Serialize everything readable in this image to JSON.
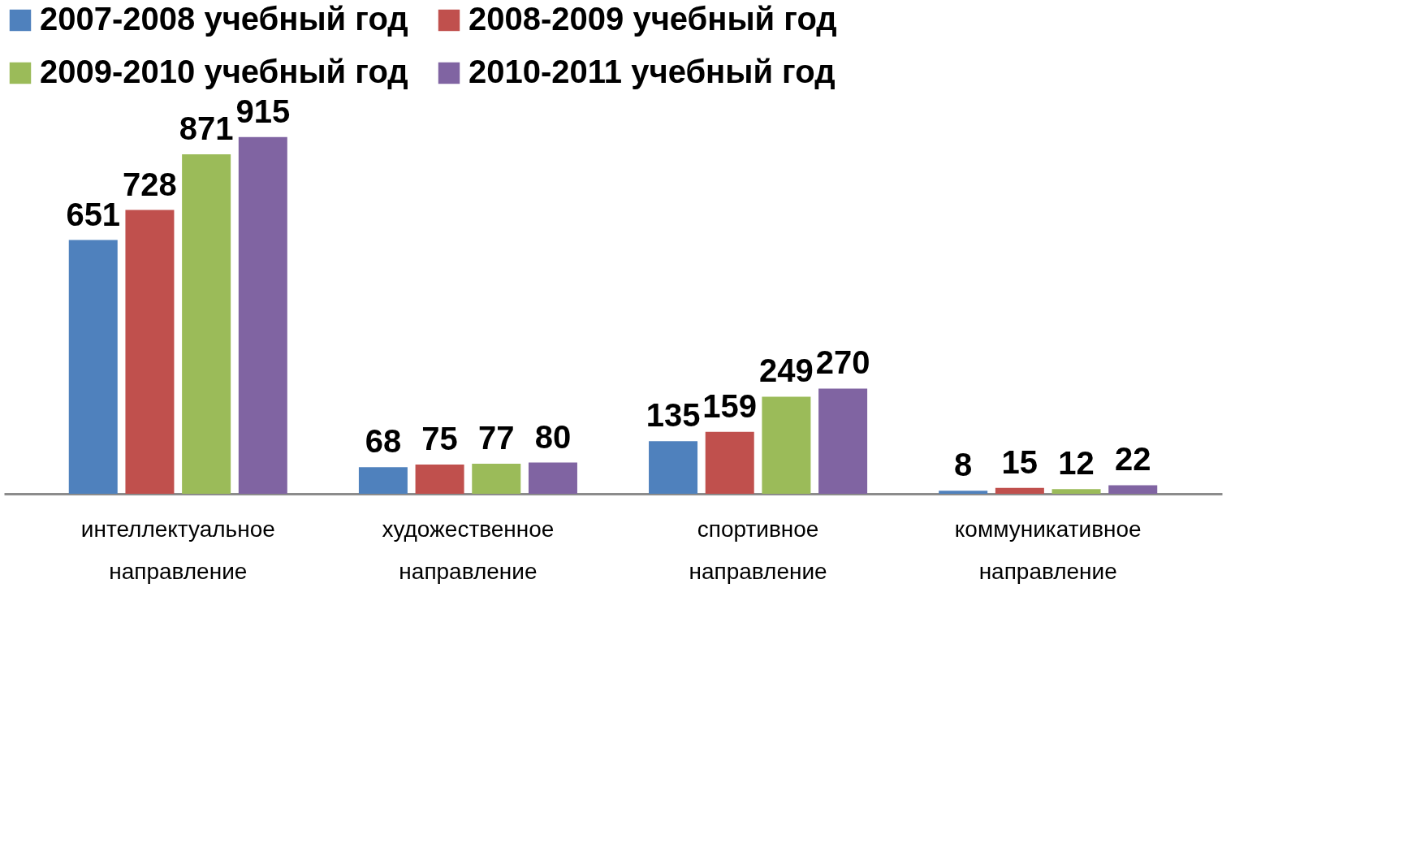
{
  "chart_data": {
    "type": "bar",
    "categories": [
      "интеллектуальное направление",
      "художественное направление",
      "спортивное направление",
      "коммуникативное направление"
    ],
    "series": [
      {
        "name": "2007-2008 учебный год",
        "color": "#4f81bd",
        "values": [
          651,
          68,
          135,
          8
        ]
      },
      {
        "name": "2008-2009 учебный год",
        "color": "#c0504d",
        "values": [
          728,
          75,
          159,
          15
        ]
      },
      {
        "name": "2009-2010 учебный год",
        "color": "#9bbb59",
        "values": [
          871,
          77,
          249,
          12
        ]
      },
      {
        "name": "2010-2011 учебный год",
        "color": "#8064a2",
        "values": [
          915,
          80,
          270,
          22
        ]
      }
    ],
    "data_labels": true,
    "legend": "top",
    "grid": false
  }
}
